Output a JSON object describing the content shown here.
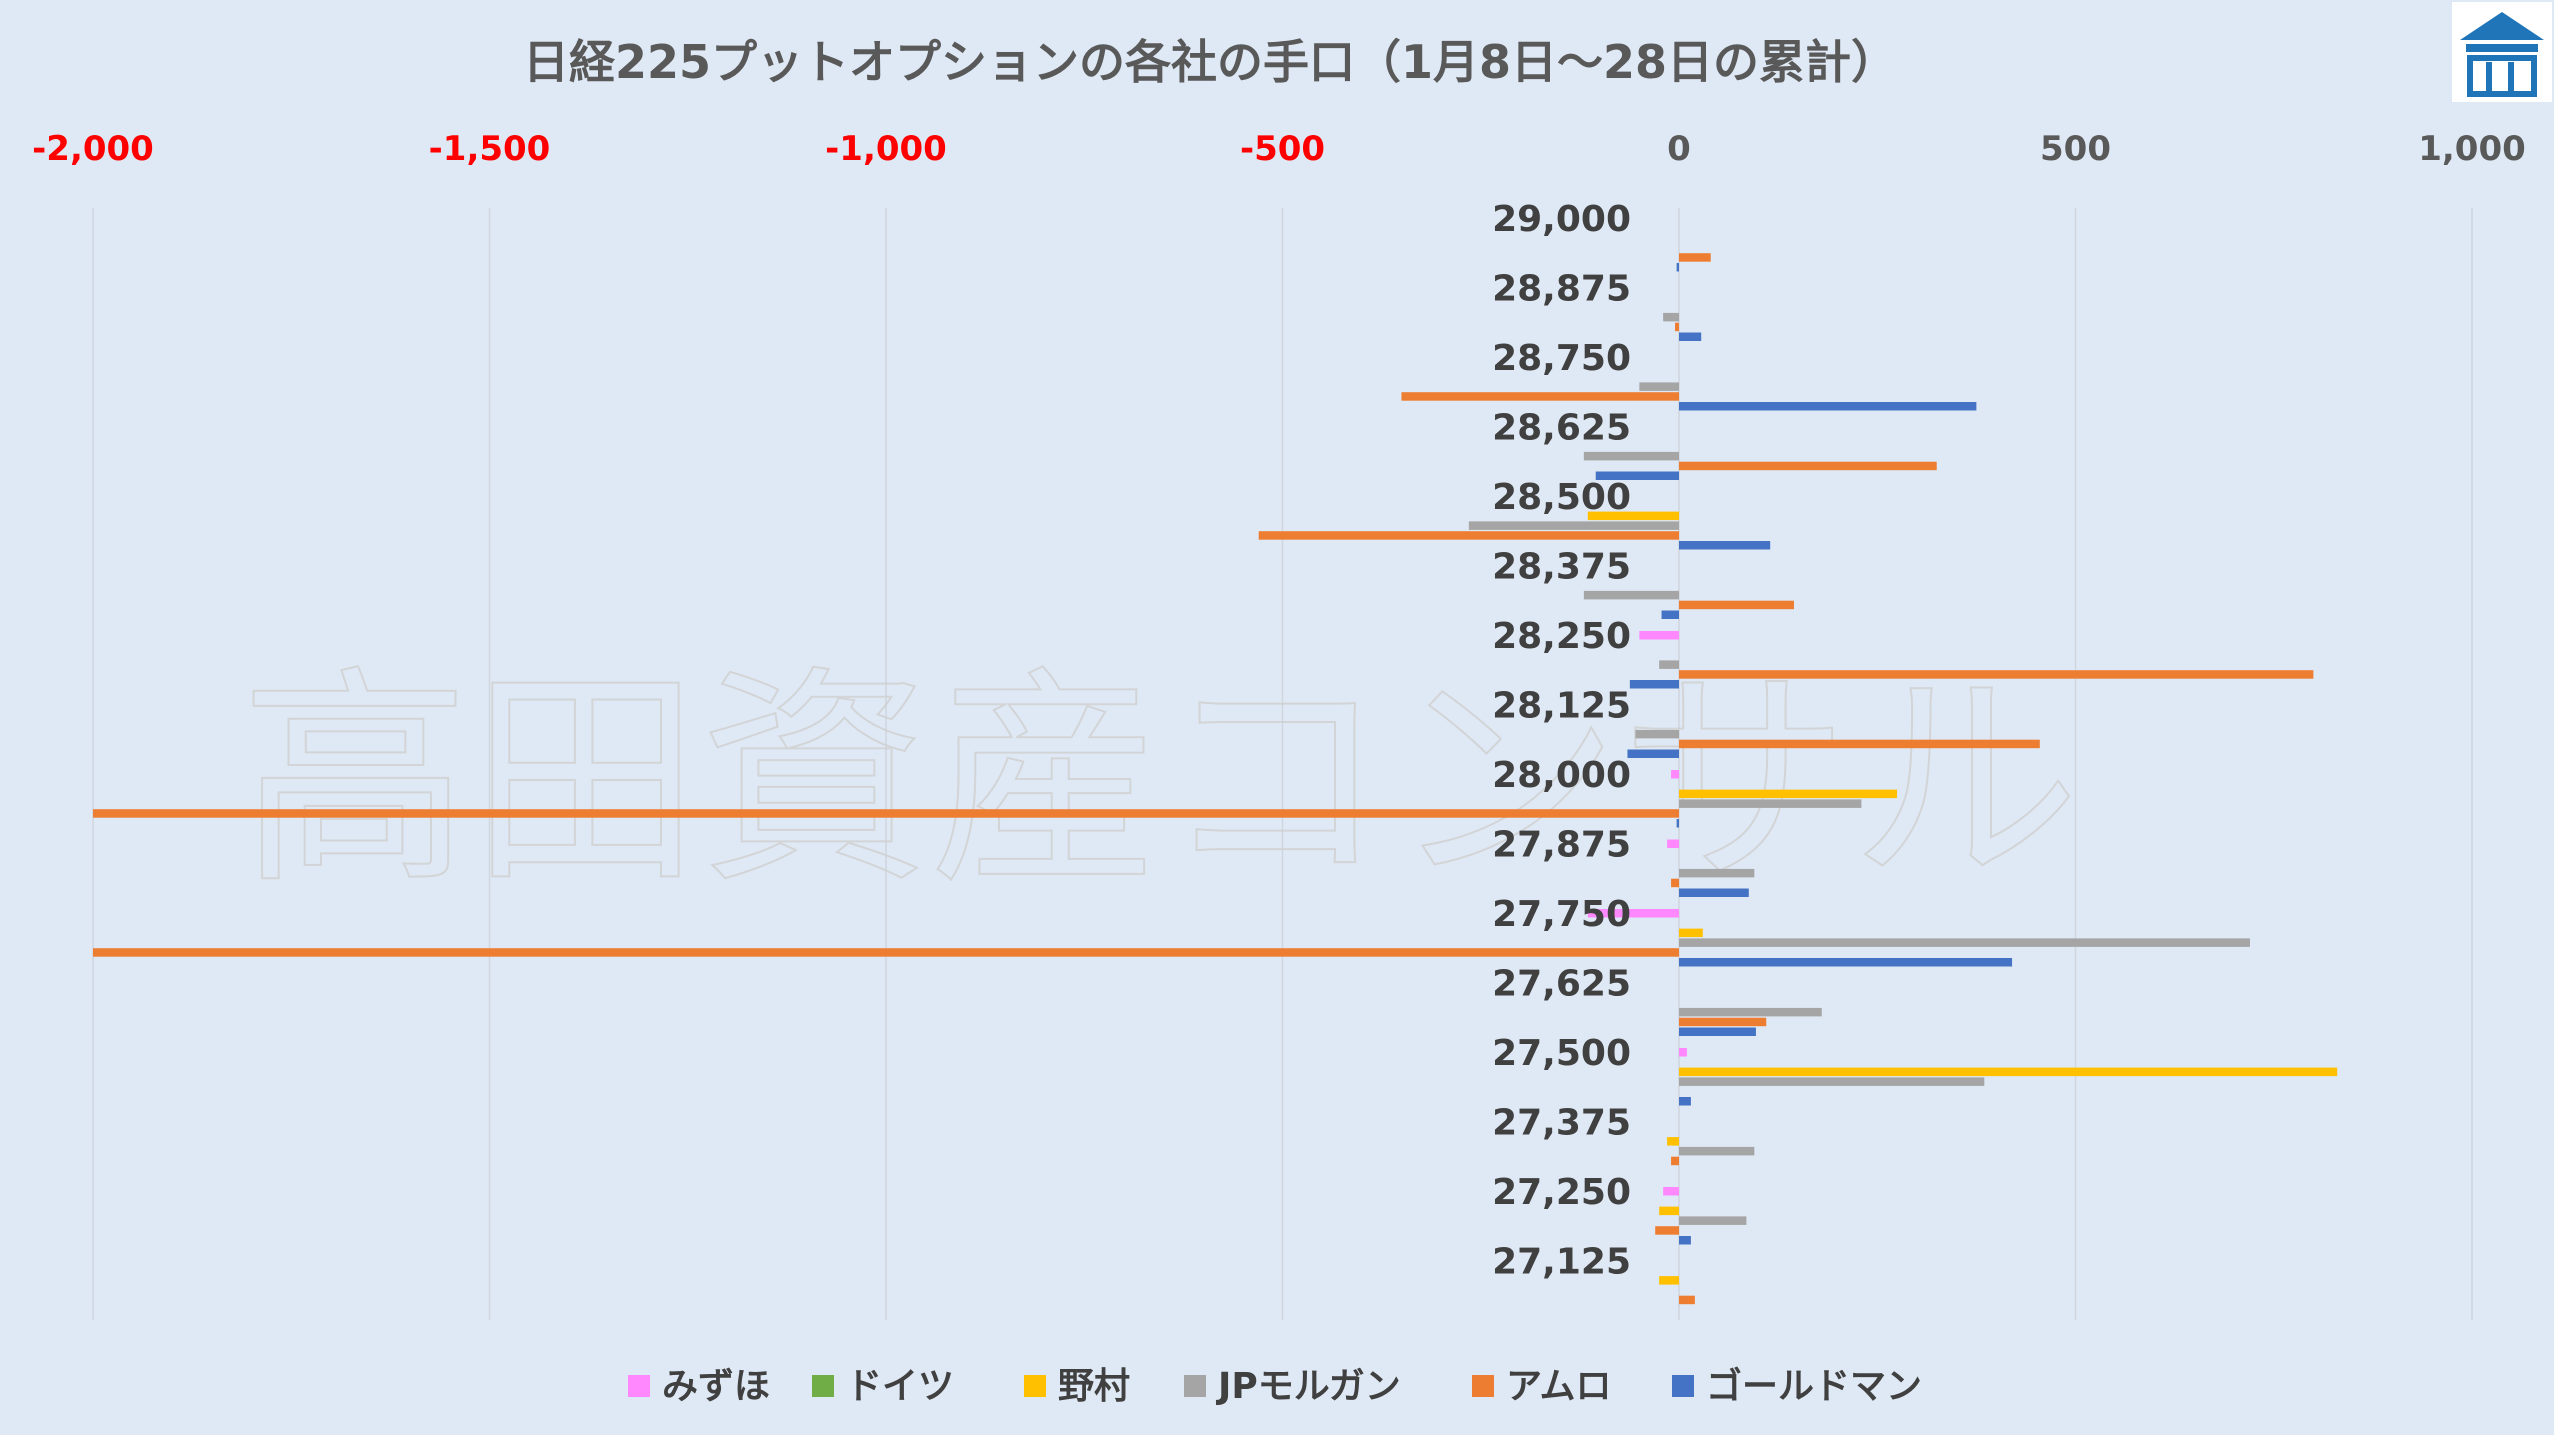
{
  "chart_data": {
    "type": "bar",
    "orientation": "horizontal",
    "title": "日経225プットオプションの各社の手口（1月8日～28日の累計）",
    "xlim": [
      -2000,
      1000
    ],
    "x_ticks": [
      -2000,
      -1500,
      -1000,
      -500,
      0,
      500,
      1000
    ],
    "x_tick_labels": [
      "-2,000",
      "-1,500",
      "-1,000",
      "-500",
      "0",
      "500",
      "1,000"
    ],
    "x_axis_position": "top",
    "negative_tick_color": "#ff0000",
    "positive_tick_color": "#595959",
    "grid": true,
    "legend_position": "bottom",
    "categories": [
      "29,000",
      "28,875",
      "28,750",
      "28,625",
      "28,500",
      "28,375",
      "28,250",
      "28,125",
      "28,000",
      "27,875",
      "27,750",
      "27,625",
      "27,500",
      "27,375",
      "27,250",
      "27,125"
    ],
    "series": [
      {
        "name": "みずほ",
        "color": "#ff88ff",
        "values": [
          0,
          0,
          0,
          0,
          0,
          0,
          -50,
          0,
          -10,
          -15,
          -115,
          0,
          10,
          0,
          -20,
          0
        ]
      },
      {
        "name": "ドイツ",
        "color": "#70ad47",
        "values": [
          0,
          0,
          0,
          0,
          0,
          0,
          0,
          0,
          0,
          0,
          0,
          0,
          0,
          0,
          0,
          0
        ]
      },
      {
        "name": "野村",
        "color": "#ffc000",
        "values": [
          0,
          0,
          0,
          0,
          -115,
          0,
          0,
          0,
          275,
          0,
          30,
          0,
          830,
          -15,
          -25,
          -25
        ]
      },
      {
        "name": "JPモルガン",
        "color": "#a5a5a5",
        "values": [
          0,
          -20,
          -50,
          -120,
          -265,
          -120,
          -25,
          -55,
          230,
          95,
          720,
          180,
          385,
          95,
          85,
          0
        ]
      },
      {
        "name": "アムロ",
        "color": "#ed7d31",
        "values": [
          40,
          -5,
          -350,
          325,
          -530,
          145,
          800,
          455,
          -2000,
          -10,
          -2000,
          110,
          0,
          -10,
          -30,
          20
        ]
      },
      {
        "name": "ゴールドマン",
        "color": "#4472c4",
        "values": [
          -3,
          28,
          375,
          -105,
          115,
          -22,
          -62,
          -65,
          -3,
          88,
          420,
          97,
          15,
          0,
          15,
          0
        ]
      }
    ]
  },
  "watermark_text": "高田資産コンサル"
}
